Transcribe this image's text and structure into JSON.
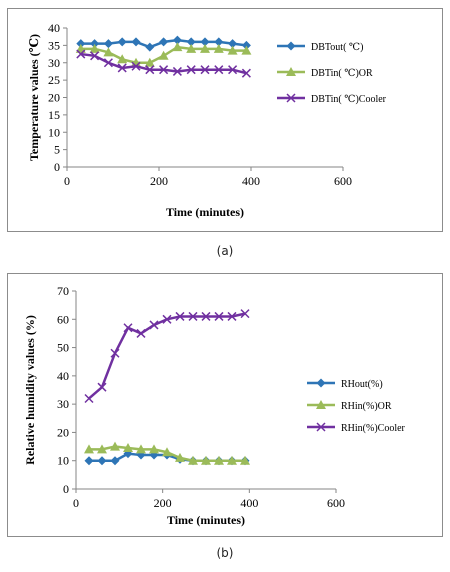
{
  "captions": {
    "a": "(a)",
    "b": "(b)"
  },
  "chart_data": [
    {
      "type": "line",
      "xlabel": "Time (minutes)",
      "ylabel": "Temperature values (℃)",
      "xlim": [
        0,
        600
      ],
      "ylim": [
        0,
        40
      ],
      "xticks": [
        0,
        200,
        400,
        600
      ],
      "yticks": [
        0,
        5,
        10,
        15,
        20,
        25,
        30,
        35,
        40
      ],
      "grid": false,
      "legend_position": "right",
      "x": [
        30,
        60,
        90,
        120,
        150,
        180,
        210,
        240,
        270,
        300,
        330,
        360,
        390
      ],
      "series": [
        {
          "name": "DBTout( ℃)",
          "color": "#2e75b6",
          "marker": "diamond",
          "values": [
            35.5,
            35.5,
            35.5,
            36,
            36,
            34.5,
            36,
            36.5,
            36,
            36,
            36,
            35.5,
            35
          ]
        },
        {
          "name": "DBTin( ℃)OR",
          "color": "#9bbb59",
          "marker": "triangle",
          "values": [
            34,
            34,
            33,
            31,
            30,
            30,
            32,
            34.5,
            34,
            34,
            34,
            33.5,
            33.5
          ]
        },
        {
          "name": "DBTin( ℃)Cooler",
          "color": "#7030a0",
          "marker": "x",
          "values": [
            32.5,
            32,
            30,
            28.5,
            29,
            28,
            28,
            27.5,
            28,
            28,
            28,
            28,
            27
          ]
        }
      ]
    },
    {
      "type": "line",
      "xlabel": "Time (minutes)",
      "ylabel": "Relative humidity values (%)",
      "xlim": [
        0,
        600
      ],
      "ylim": [
        0,
        70
      ],
      "xticks": [
        0,
        200,
        400,
        600
      ],
      "yticks": [
        0,
        10,
        20,
        30,
        40,
        50,
        60,
        70
      ],
      "grid": false,
      "legend_position": "right",
      "x": [
        30,
        60,
        90,
        120,
        150,
        180,
        210,
        240,
        270,
        300,
        330,
        360,
        390
      ],
      "series": [
        {
          "name": "RHout(%)",
          "color": "#2e75b6",
          "marker": "diamond",
          "values": [
            10,
            10,
            10,
            12.5,
            12,
            12,
            12,
            10.5,
            10,
            10,
            10,
            10,
            10
          ]
        },
        {
          "name": "RHin(%)OR",
          "color": "#9bbb59",
          "marker": "triangle",
          "values": [
            14,
            14,
            15,
            14.5,
            14,
            14,
            13,
            11,
            10,
            10,
            10,
            10,
            10
          ]
        },
        {
          "name": "RHin(%)Cooler",
          "color": "#7030a0",
          "marker": "x",
          "values": [
            32,
            36,
            48,
            57,
            55,
            58,
            60,
            61,
            61,
            61,
            61,
            61,
            62
          ]
        }
      ]
    }
  ]
}
